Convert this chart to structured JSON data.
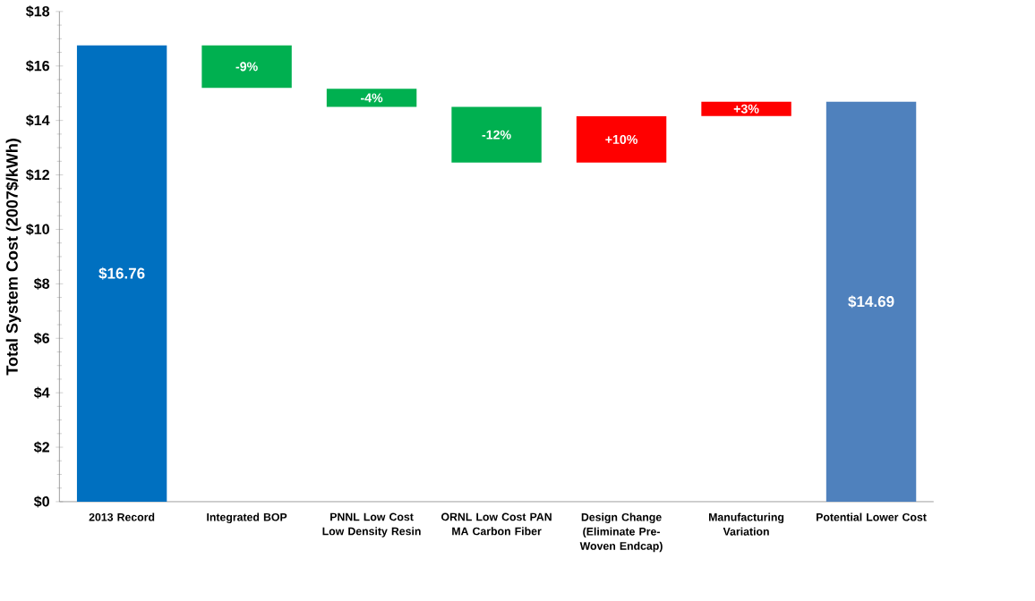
{
  "chart_data": {
    "type": "bar",
    "ylabel": "Total System Cost (2007$/kWh)",
    "categories": [
      "2013 Record",
      "Integrated BOP",
      "PNNL Low Cost Low Density Resin",
      "ORNL Low Cost PAN MA Carbon Fiber",
      "Design Change (Eliminate Pre-Woven Endcap)",
      "Manufacturing Variation",
      "Potential Lower Cost"
    ],
    "values": [
      16.76,
      1.56,
      0.66,
      2.05,
      1.7,
      0.53,
      14.69
    ],
    "base": [
      0,
      15.2,
      14.5,
      12.45,
      12.45,
      14.16,
      0
    ],
    "colors": [
      "#0070c0",
      "#00b050",
      "#00b050",
      "#00b050",
      "#ff0000",
      "#ff0000",
      "#4f81bd"
    ],
    "value_labels": [
      "$16.76",
      null,
      null,
      null,
      null,
      null,
      "$14.69"
    ],
    "annotations": [
      "-9%",
      "-4%",
      "-12%",
      "+10%",
      "+3%"
    ],
    "ylim": [
      0,
      18
    ],
    "yticks": [
      {
        "value": 0,
        "label": "$0"
      },
      {
        "value": 2,
        "label": "$2"
      },
      {
        "value": 4,
        "label": "$4"
      },
      {
        "value": 6,
        "label": "$6"
      },
      {
        "value": 8,
        "label": "$8"
      },
      {
        "value": 10,
        "label": "$10"
      },
      {
        "value": 12,
        "label": "$12"
      },
      {
        "value": 14,
        "label": "$14"
      },
      {
        "value": 16,
        "label": "$16"
      },
      {
        "value": 18,
        "label": "$18"
      }
    ],
    "grid": false
  }
}
